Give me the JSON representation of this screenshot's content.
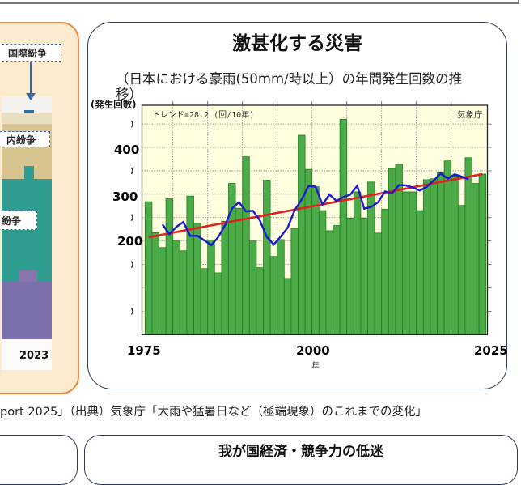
{
  "left_panel": {
    "labels": [
      "国際紛争",
      "内紛争",
      "紛争"
    ],
    "year_label": "2023",
    "colors": {
      "border": "#e8873a",
      "background": "#fdebd0",
      "area_top": "#d8c48e",
      "area_middle": "#2f9e91",
      "area_bottom": "#7b70ab"
    }
  },
  "main_panel": {
    "title": "激甚化する災害",
    "subtitle": "（日本における豪雨(50mm/時以上）の年間発生回数の推移）"
  },
  "source": {
    "left_fragment": "port 2025」",
    "text": "（出典）気象庁「大雨や猛暑日など（極端現象）のこれまでの変化」"
  },
  "bottom": {
    "right_title": "我が国経済・競争力の低迷"
  },
  "chart_data": {
    "type": "bar",
    "ylabel": "(発生回数)",
    "xlabel": "年",
    "annotation_left": "トレンド=28.2 (回/10年)",
    "annotation_right": "気象庁",
    "x_ticks": [
      "1975",
      "2000",
      "2025"
    ],
    "y_ticks": [
      "400",
      "300",
      "200"
    ],
    "ylim": [
      0,
      490
    ],
    "grid": true,
    "background": "#ffffe0",
    "colors": {
      "bar": "#4caa48",
      "bar_edge": "#1e7d1e",
      "moving_average": "#1a1ad0",
      "trend": "#e02020"
    },
    "x": [
      1976,
      1977,
      1978,
      1979,
      1980,
      1981,
      1982,
      1983,
      1984,
      1985,
      1986,
      1987,
      1988,
      1989,
      1990,
      1991,
      1992,
      1993,
      1994,
      1995,
      1996,
      1997,
      1998,
      1999,
      2000,
      2001,
      2002,
      2003,
      2004,
      2005,
      2006,
      2007,
      2008,
      2009,
      2010,
      2011,
      2012,
      2013,
      2014,
      2015,
      2016,
      2017,
      2018,
      2019,
      2020,
      2021,
      2022,
      2023,
      2024
    ],
    "values": [
      284,
      218,
      186,
      290,
      200,
      179,
      296,
      238,
      141,
      202,
      132,
      242,
      323,
      270,
      380,
      200,
      143,
      330,
      167,
      203,
      120,
      227,
      426,
      353,
      316,
      265,
      222,
      233,
      460,
      249,
      305,
      249,
      326,
      217,
      268,
      355,
      364,
      305,
      305,
      265,
      331,
      333,
      346,
      373,
      339,
      276,
      378,
      323,
      343
    ],
    "moving_average_window": 5,
    "trend": {
      "per_decade": 28.2,
      "start": [
        1976,
        208
      ],
      "end": [
        2024,
        343
      ]
    }
  }
}
